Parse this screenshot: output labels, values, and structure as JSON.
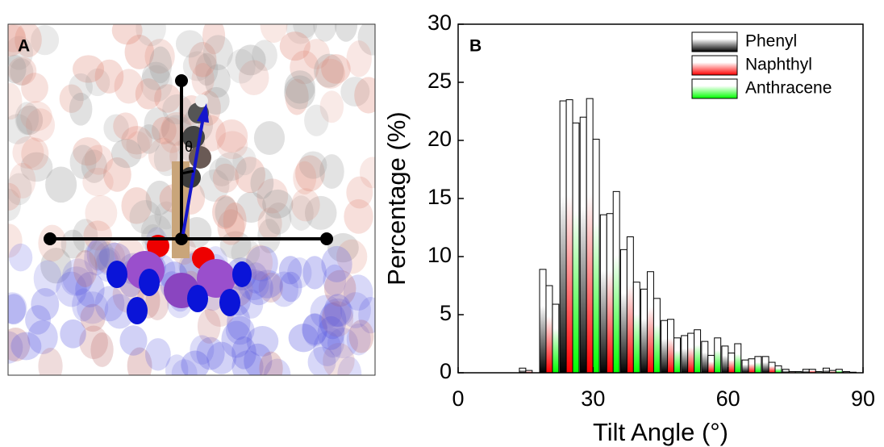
{
  "panel_a": {
    "label": "A",
    "angle_label": "θ"
  },
  "chart_data": {
    "type": "bar",
    "panel_label": "B",
    "x_label": "Tilt Angle (°)",
    "y_label": "Percentage (%)",
    "x": [
      15.75,
      20.25,
      24.75,
      29.25,
      33.75,
      38.25,
      42.75,
      47.25,
      51.75,
      56.25,
      60.75,
      65.25,
      69.75,
      74.25,
      78.75,
      83.25,
      87.75
    ],
    "series": [
      {
        "name": "Phenyl",
        "color": "#000000",
        "values": [
          0.4,
          8.9,
          23.4,
          22.0,
          13.6,
          10.6,
          7.2,
          4.5,
          3.2,
          2.7,
          2.3,
          1.1,
          1.4,
          0.3,
          0.3,
          0.4,
          0.1
        ]
      },
      {
        "name": "Naphthyl",
        "color": "#ff0000",
        "values": [
          0.2,
          7.5,
          23.5,
          23.6,
          13.7,
          11.7,
          8.7,
          4.6,
          3.4,
          1.5,
          1.7,
          1.2,
          0.9,
          0.1,
          0.3,
          0.2,
          0.05
        ]
      },
      {
        "name": "Anthracene",
        "color": "#00ff00",
        "values": [
          0,
          5.9,
          21.5,
          20.1,
          15.6,
          7.8,
          6.4,
          3.0,
          3.7,
          3.0,
          2.5,
          1.4,
          0.6,
          0.1,
          0.1,
          0.3,
          0
        ]
      }
    ],
    "xlim": [
      0,
      90
    ],
    "xticks": [
      0,
      30,
      60,
      90
    ],
    "ylim": [
      0,
      30
    ],
    "yticks": [
      0,
      5,
      10,
      15,
      20,
      25,
      30
    ],
    "bin_width": 4.5,
    "legend": "top-right"
  }
}
